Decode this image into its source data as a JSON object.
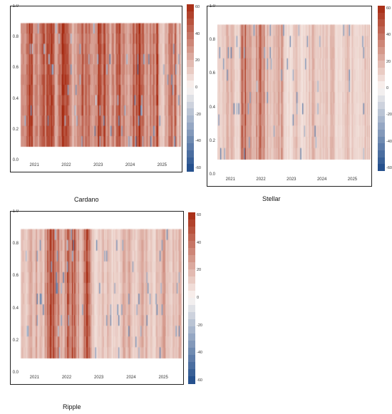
{
  "chart_data": [
    {
      "type": "heatmap",
      "title": "Cardano",
      "x_tick_labels": [
        "2021",
        "2022",
        "2023",
        "2024",
        "2025"
      ],
      "y_tick_labels": [
        "0.0",
        "0.2",
        "0.4",
        "0.6",
        "0.8",
        "1.0"
      ],
      "ylim": [
        0,
        1
      ],
      "band_y": [
        0.1,
        0.9
      ],
      "colorbar_ticks": [
        "60",
        "40",
        "20",
        "0",
        "-20",
        "-40",
        "-60"
      ],
      "colorbar_range": [
        -60,
        60
      ],
      "colors": {
        "positive": "#a6280f",
        "neutral": "#fbf6f3",
        "negative": "#1d4a8a"
      }
    },
    {
      "type": "heatmap",
      "title": "Stellar",
      "x_tick_labels": [
        "2021",
        "2022",
        "2023",
        "2024",
        "2025"
      ],
      "y_tick_labels": [
        "0.0",
        "0.2",
        "0.4",
        "0.6",
        "0.8",
        "1.0"
      ],
      "ylim": [
        0,
        1
      ],
      "band_y": [
        0.1,
        0.9
      ],
      "colorbar_ticks": [
        "60",
        "40",
        "20",
        "0",
        "-20",
        "-40",
        "-60"
      ],
      "colorbar_range": [
        -60,
        60
      ],
      "colors": {
        "positive": "#a6280f",
        "neutral": "#fbf6f3",
        "negative": "#1d4a8a"
      }
    },
    {
      "type": "heatmap",
      "title": "Ripple",
      "x_tick_labels": [
        "2021",
        "2022",
        "2023",
        "2024",
        "2025"
      ],
      "y_tick_labels": [
        "0.0",
        "0.2",
        "0.4",
        "0.6",
        "0.8",
        "1.0"
      ],
      "ylim": [
        0,
        1
      ],
      "band_y": [
        0.1,
        0.9
      ],
      "colorbar_ticks": [
        "60",
        "40",
        "20",
        "0",
        "-20",
        "-40",
        "-60"
      ],
      "colorbar_range": [
        -60,
        60
      ],
      "colors": {
        "positive": "#a6280f",
        "neutral": "#fbf6f3",
        "negative": "#1d4a8a"
      }
    }
  ]
}
